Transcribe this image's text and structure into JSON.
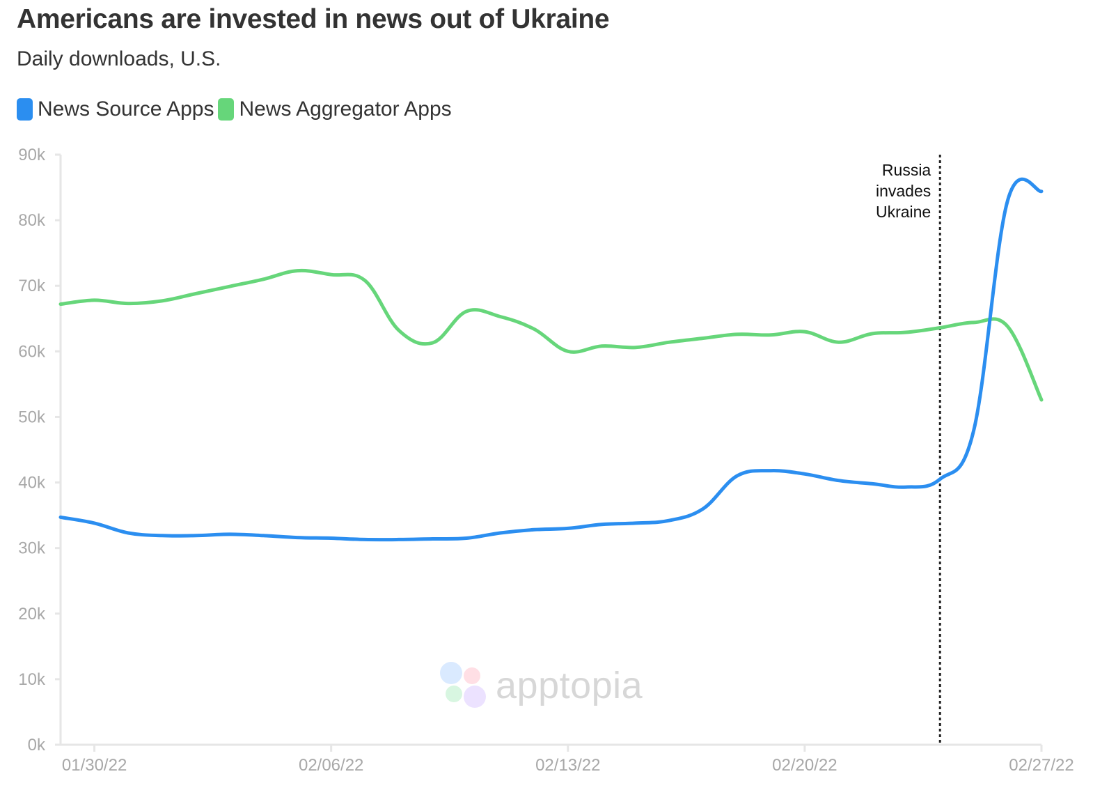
{
  "header": {
    "title": "Americans are invested in news out of Ukraine",
    "subtitle": "Daily downloads, U.S."
  },
  "legend": [
    {
      "label": "News Source Apps",
      "color": "#2b8ef0"
    },
    {
      "label": "News Aggregator Apps",
      "color": "#66d67a"
    }
  ],
  "watermark": {
    "text": "apptopia"
  },
  "chart_data": {
    "type": "line",
    "title": "Americans are invested in news out of Ukraine",
    "subtitle": "Daily downloads, U.S.",
    "xlabel": "",
    "ylabel": "",
    "ylim": [
      0,
      90000
    ],
    "y_ticks": [
      "0k",
      "10k",
      "20k",
      "30k",
      "40k",
      "50k",
      "60k",
      "70k",
      "80k",
      "90k"
    ],
    "x_tick_labels": [
      "01/30/22",
      "02/06/22",
      "02/13/22",
      "02/20/22",
      "02/27/22"
    ],
    "grid": false,
    "legend_position": "top-left",
    "x": [
      "01/29/22",
      "01/30/22",
      "01/31/22",
      "02/01/22",
      "02/02/22",
      "02/03/22",
      "02/04/22",
      "02/05/22",
      "02/06/22",
      "02/07/22",
      "02/08/22",
      "02/09/22",
      "02/10/22",
      "02/11/22",
      "02/12/22",
      "02/13/22",
      "02/14/22",
      "02/15/22",
      "02/16/22",
      "02/17/22",
      "02/18/22",
      "02/19/22",
      "02/20/22",
      "02/21/22",
      "02/22/22",
      "02/23/22",
      "02/24/22",
      "02/25/22",
      "02/26/22",
      "02/27/22"
    ],
    "series": [
      {
        "name": "News Source Apps",
        "color": "#2b8ef0",
        "values": [
          34700,
          33800,
          32300,
          31900,
          31900,
          32100,
          31900,
          31600,
          31500,
          31300,
          31300,
          31400,
          31500,
          32300,
          32800,
          33000,
          33600,
          33800,
          34200,
          36000,
          41000,
          41800,
          41300,
          40300,
          39800,
          39300,
          40500,
          48000,
          83000,
          84400
        ]
      },
      {
        "name": "News Aggregator Apps",
        "color": "#66d67a",
        "values": [
          67200,
          67800,
          67300,
          67700,
          68800,
          69900,
          71000,
          72300,
          71700,
          70800,
          63200,
          61300,
          66100,
          65300,
          63400,
          60000,
          60800,
          60600,
          61400,
          62000,
          62600,
          62500,
          63000,
          61400,
          62700,
          62900,
          63600,
          64400,
          63800,
          52600
        ]
      }
    ],
    "annotations": [
      {
        "x": "02/24/22",
        "lines": [
          "Russia",
          "invades",
          "Ukraine"
        ],
        "style": "dotted-vertical-line"
      }
    ]
  }
}
